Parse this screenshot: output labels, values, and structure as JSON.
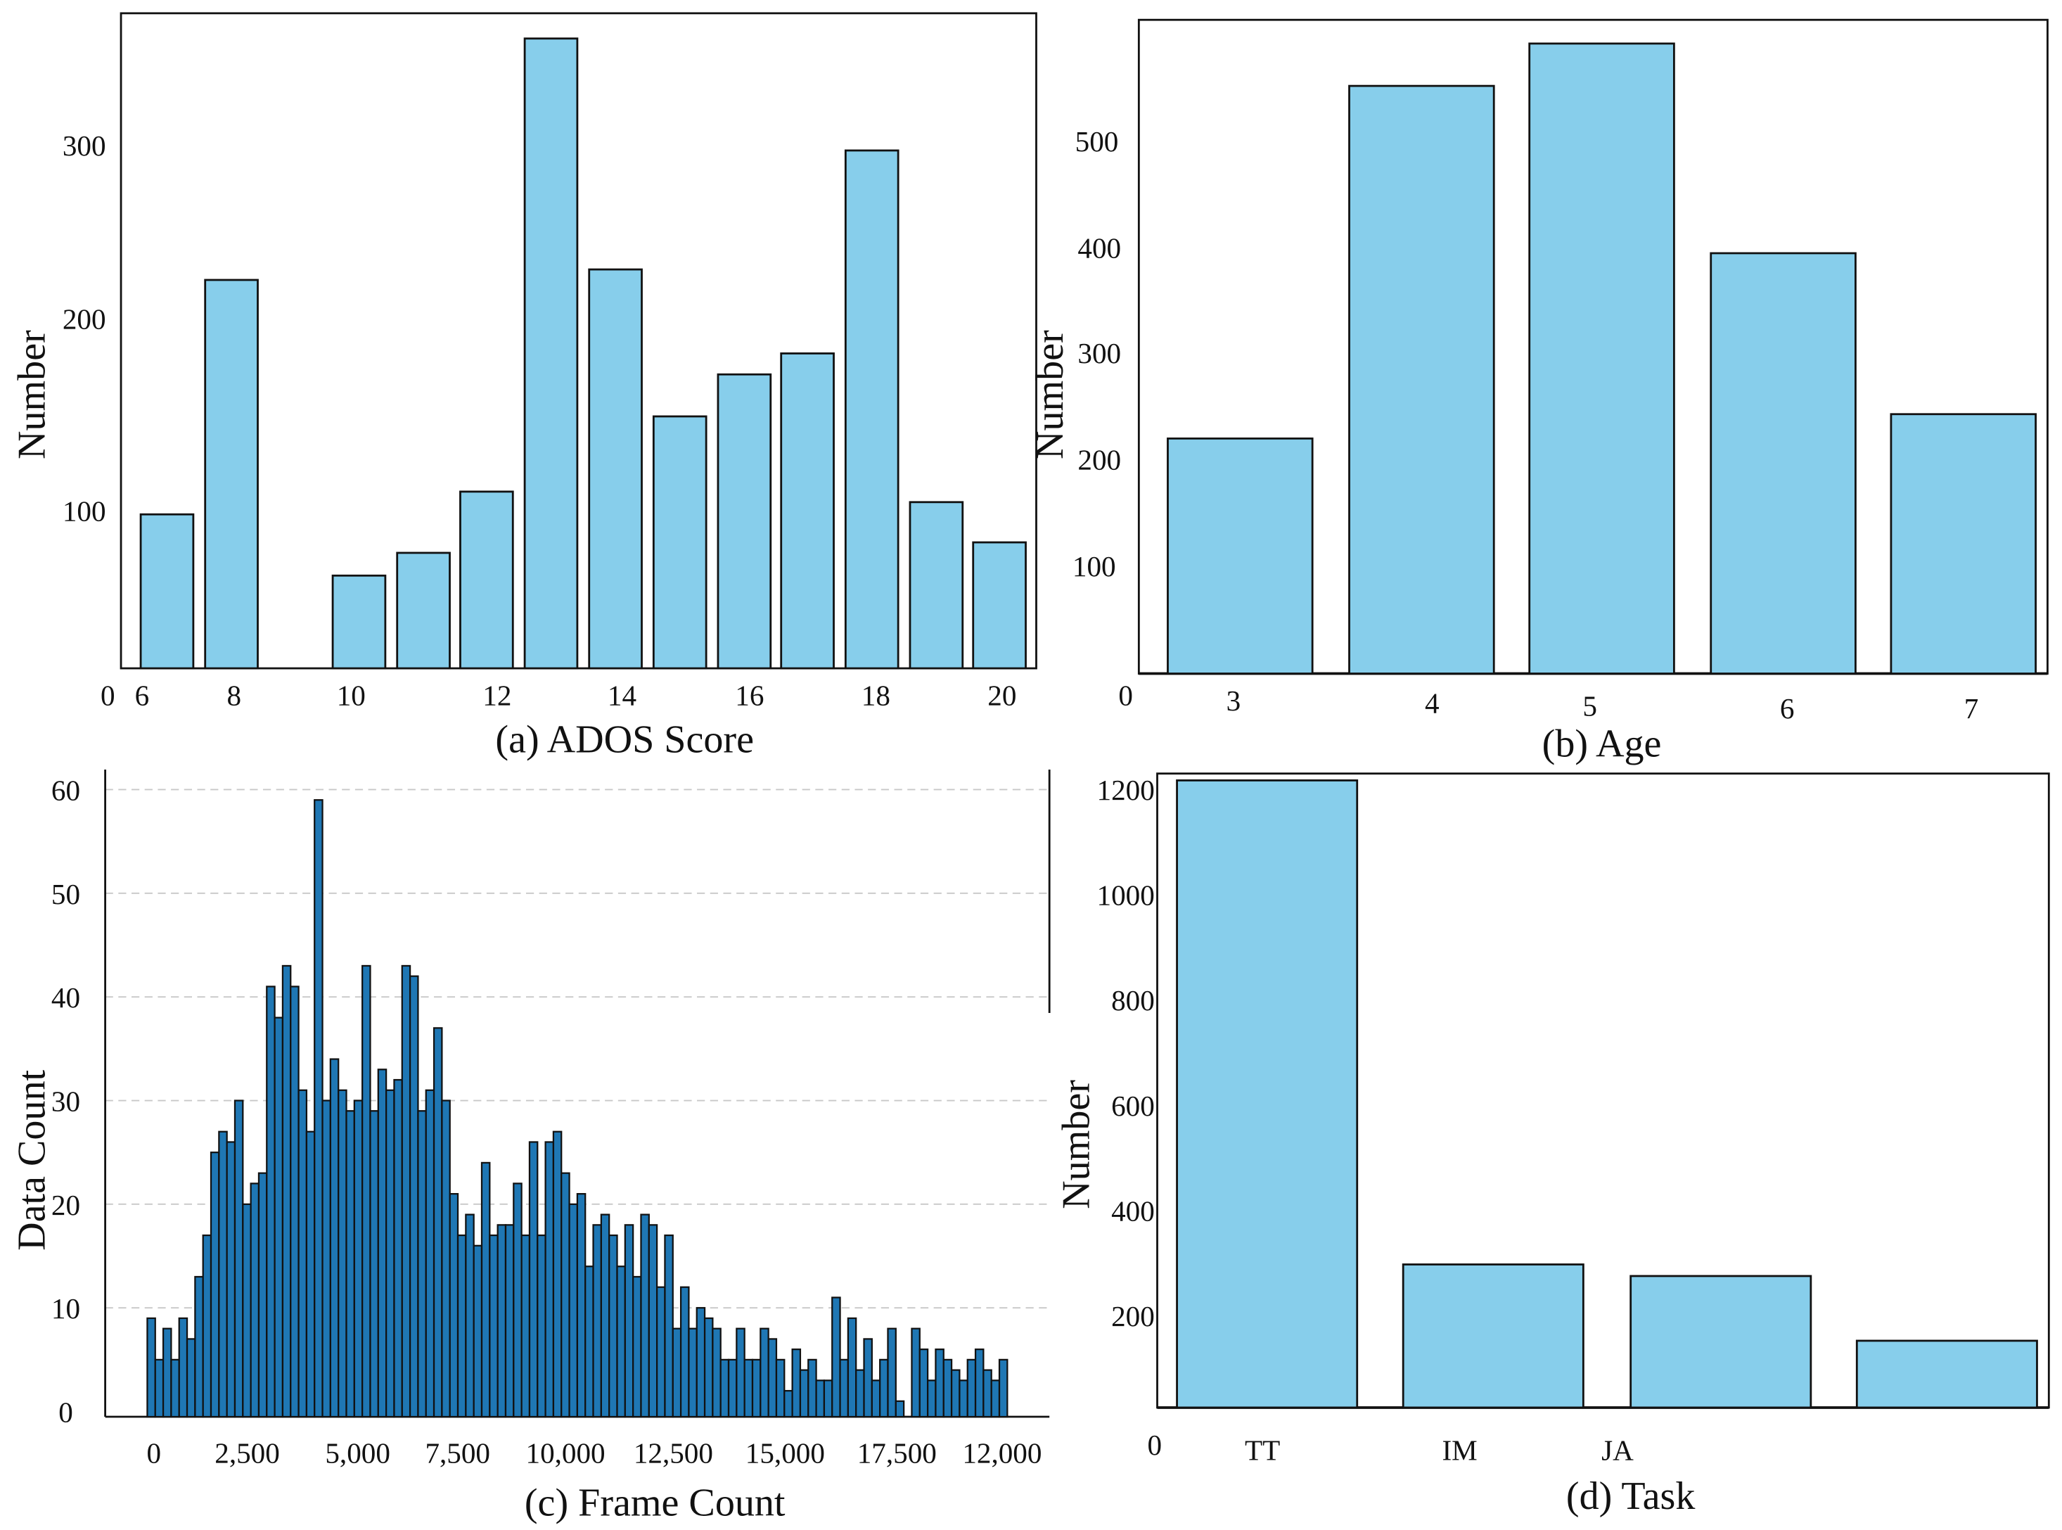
{
  "colors": {
    "bar": "#87CEEB",
    "hist": "#1f77b4",
    "edge": "#111111",
    "grid": "#c8c8c8"
  },
  "chart_data": [
    {
      "type": "bar",
      "title": "(a) ADOS Score",
      "xlabel": "(a) ADOS Score",
      "ylabel": "Number",
      "categories": [
        "6",
        "7",
        "8",
        "10",
        "11",
        "12",
        "13",
        "14",
        "15",
        "16",
        "17",
        "18",
        "19",
        "20"
      ],
      "values": [
        88,
        222,
        0,
        53,
        66,
        101,
        360,
        228,
        144,
        168,
        180,
        296,
        95,
        72
      ],
      "xtick_labels": [
        "6",
        "8",
        "10",
        "12",
        "14",
        "16",
        "18",
        "20"
      ],
      "ytick_labels": [
        "0",
        "100",
        "200",
        "300"
      ],
      "ylim": [
        0,
        380
      ]
    },
    {
      "type": "bar",
      "title": "(b) Age",
      "xlabel": "(b) Age",
      "ylabel": "Number",
      "categories": [
        "3",
        "4",
        "5",
        "6",
        "7"
      ],
      "values": [
        222,
        555,
        595,
        397,
        245
      ],
      "ytick_labels": [
        "0",
        "100",
        "200",
        "300",
        "400",
        "500"
      ],
      "ylim": [
        0,
        620
      ]
    },
    {
      "type": "bar",
      "title": "(c) Frame Count",
      "xlabel": "(c) Frame Count",
      "ylabel": "Data Count",
      "xtick_labels": [
        "0",
        "2,500",
        "5,000",
        "7,500",
        "10,000",
        "12,500",
        "15,000",
        "17,500",
        "12,000"
      ],
      "ytick_labels": [
        "0",
        "10",
        "20",
        "30",
        "40",
        "50",
        "60"
      ],
      "ylim": [
        0,
        62
      ],
      "grid": true,
      "values": [
        9,
        5,
        8,
        5,
        9,
        7,
        13,
        17,
        25,
        27,
        26,
        30,
        20,
        22,
        23,
        41,
        38,
        43,
        41,
        31,
        27,
        59,
        30,
        34,
        31,
        29,
        30,
        43,
        29,
        33,
        31,
        32,
        43,
        42,
        29,
        31,
        37,
        30,
        21,
        17,
        19,
        16,
        24,
        17,
        18,
        18,
        22,
        17,
        26,
        17,
        26,
        27,
        23,
        20,
        21,
        14,
        18,
        19,
        17,
        14,
        18,
        13,
        19,
        18,
        12,
        17,
        8,
        12,
        8,
        10,
        9,
        8,
        5,
        5,
        8,
        5,
        5,
        8,
        7,
        5,
        2,
        6,
        4,
        5,
        3,
        3,
        11,
        5,
        9,
        4,
        7,
        3,
        5,
        8,
        1,
        0,
        8,
        6,
        3,
        6,
        5,
        4,
        3,
        5,
        6,
        4,
        3,
        5
      ]
    },
    {
      "type": "bar",
      "title": "(d)  Task",
      "xlabel": "(d)  Task",
      "ylabel": "Number",
      "categories": [
        "TT",
        "IM",
        "JA",
        ""
      ],
      "values": [
        1217,
        297,
        275,
        152
      ],
      "ytick_labels": [
        "0",
        "200",
        "400",
        "600",
        "800",
        "1000",
        "1200"
      ],
      "ylim": [
        0,
        1250
      ]
    }
  ]
}
